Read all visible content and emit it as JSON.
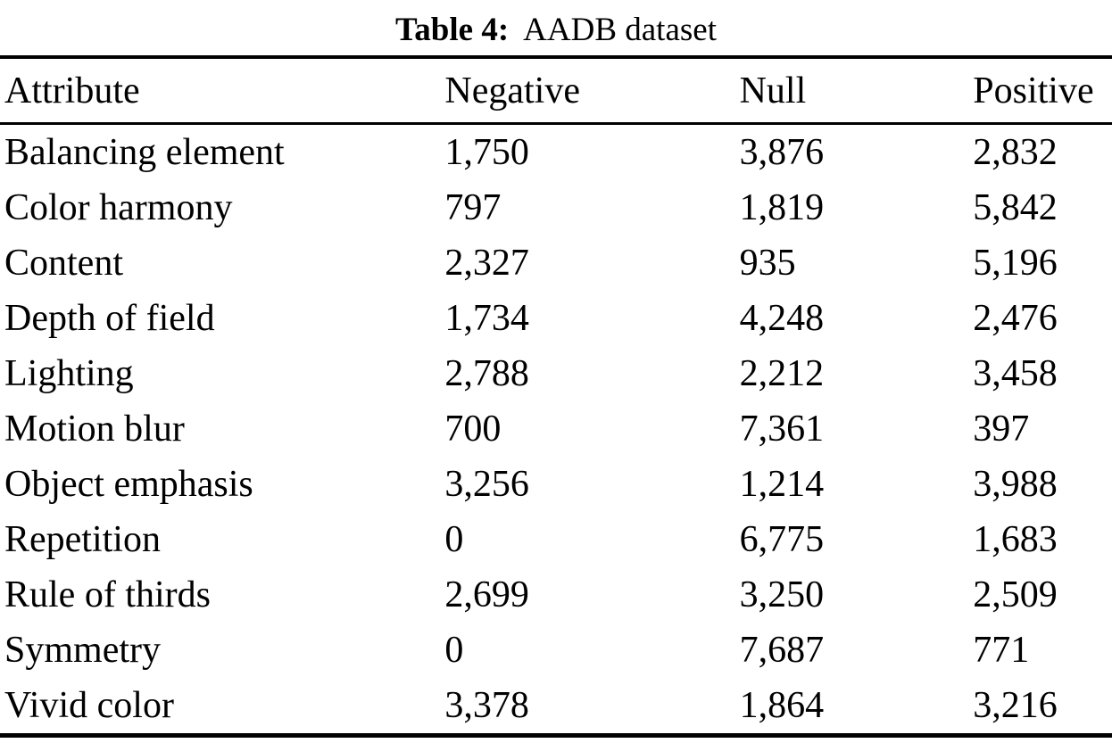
{
  "caption": {
    "label": "Table 4:",
    "title": "AADB dataset"
  },
  "table": {
    "headers": [
      "Attribute",
      "Negative",
      "Null",
      "Positive"
    ],
    "rows": [
      [
        "Balancing element",
        "1,750",
        "3,876",
        "2,832"
      ],
      [
        "Color harmony",
        "797",
        "1,819",
        "5,842"
      ],
      [
        "Content",
        "2,327",
        "935",
        "5,196"
      ],
      [
        "Depth of field",
        "1,734",
        "4,248",
        "2,476"
      ],
      [
        "Lighting",
        "2,788",
        "2,212",
        "3,458"
      ],
      [
        "Motion blur",
        "700",
        "7,361",
        "397"
      ],
      [
        "Object emphasis",
        "3,256",
        "1,214",
        "3,988"
      ],
      [
        "Repetition",
        "0",
        "6,775",
        "1,683"
      ],
      [
        "Rule of thirds",
        "2,699",
        "3,250",
        "2,509"
      ],
      [
        "Symmetry",
        "0",
        "7,687",
        "771"
      ],
      [
        "Vivid color",
        "3,378",
        "1,864",
        "3,216"
      ]
    ]
  },
  "colors": {
    "text": "#000000",
    "background": "#ffffff",
    "rule": "#000000"
  }
}
